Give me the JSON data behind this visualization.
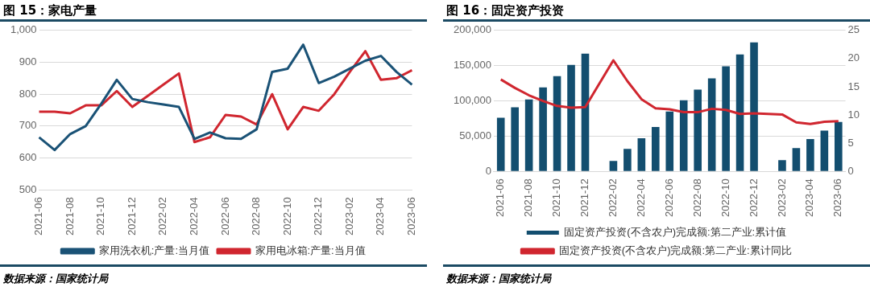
{
  "chart_data": [
    {
      "type": "line",
      "title": "图 15：家电产量",
      "annotations": [
        "数据来源：国家统计局"
      ],
      "categories": [
        "2021-06",
        null,
        "2021-08",
        null,
        "2021-10",
        null,
        "2021-12",
        null,
        "2022-02",
        null,
        "2022-04",
        null,
        "2022-06",
        null,
        "2022-08",
        null,
        "2022-10",
        null,
        "2022-12",
        null,
        "2023-02",
        null,
        "2023-04",
        null,
        "2023-06"
      ],
      "series": [
        {
          "name": "家用洗衣机:产量:当月值",
          "color": "#1a5276",
          "values": [
            665,
            625,
            675,
            700,
            770,
            845,
            785,
            775,
            768,
            760,
            660,
            680,
            662,
            660,
            690,
            870,
            880,
            955,
            835,
            855,
            880,
            905,
            920,
            870,
            830
          ]
        },
        {
          "name": "家用电冰箱:产量:当月值",
          "color": "#d0262f",
          "values": [
            745,
            745,
            740,
            765,
            765,
            810,
            760,
            795,
            830,
            865,
            650,
            665,
            735,
            730,
            705,
            800,
            690,
            760,
            748,
            800,
            870,
            935,
            845,
            850,
            875
          ]
        }
      ],
      "ylim": [
        500,
        1000
      ],
      "yticks": [
        500,
        600,
        700,
        800,
        900,
        {
          "value": 1000,
          "label": "1,000"
        }
      ],
      "grid": "y",
      "legend": "bottom",
      "marker": "none",
      "line_style": "solid"
    },
    {
      "type": "bar",
      "title": "图 16：固定资产投资",
      "annotations": [
        "数据来源：国家统计局"
      ],
      "categories": [
        "2021-06",
        null,
        "2021-08",
        null,
        "2021-10",
        null,
        "2021-12",
        null,
        "2022-02",
        null,
        "2022-04",
        null,
        "2022-06",
        null,
        "2022-08",
        null,
        "2022-10",
        null,
        "2022-12",
        null,
        "2023-02",
        null,
        "2023-04",
        null,
        "2023-06"
      ],
      "series": [
        {
          "name": "固定资产投资(不含农户)完成额:第二产业:累计值",
          "color": "#134e6f",
          "values": [
            76000,
            91000,
            102000,
            119000,
            135000,
            151000,
            167000,
            null,
            15000,
            32000,
            47000,
            63000,
            85000,
            101000,
            116000,
            132000,
            149000,
            166000,
            183000,
            null,
            16000,
            33000,
            46000,
            58000,
            70000
          ]
        },
        {
          "name": "固定资产投资(不含农户)完成额:第二产业:累计同比",
          "type": "line",
          "axis": "y2",
          "color": "#d0262f",
          "values": [
            16.3,
            14.8,
            13.5,
            12.5,
            11.6,
            11.3,
            11.4,
            null,
            19.7,
            16,
            12.8,
            11.2,
            11,
            10.5,
            10.5,
            11.1,
            10.9,
            10.2,
            10.3,
            null,
            10.1,
            8.7,
            8.4,
            8.8,
            8.9
          ]
        }
      ],
      "ylim": [
        0,
        200000
      ],
      "yticks": [
        0,
        {
          "value": 50000,
          "label": "50,000"
        },
        {
          "value": 100000,
          "label": "100,000"
        },
        {
          "value": 150000,
          "label": "150,000"
        },
        {
          "value": 200000,
          "label": "200,000"
        }
      ],
      "y2lim": [
        0,
        25
      ],
      "y2ticks": [
        0,
        5,
        10,
        15,
        20,
        25
      ],
      "grid": "y",
      "legend": "bottom",
      "marker": "none",
      "line_style": "solid"
    }
  ]
}
